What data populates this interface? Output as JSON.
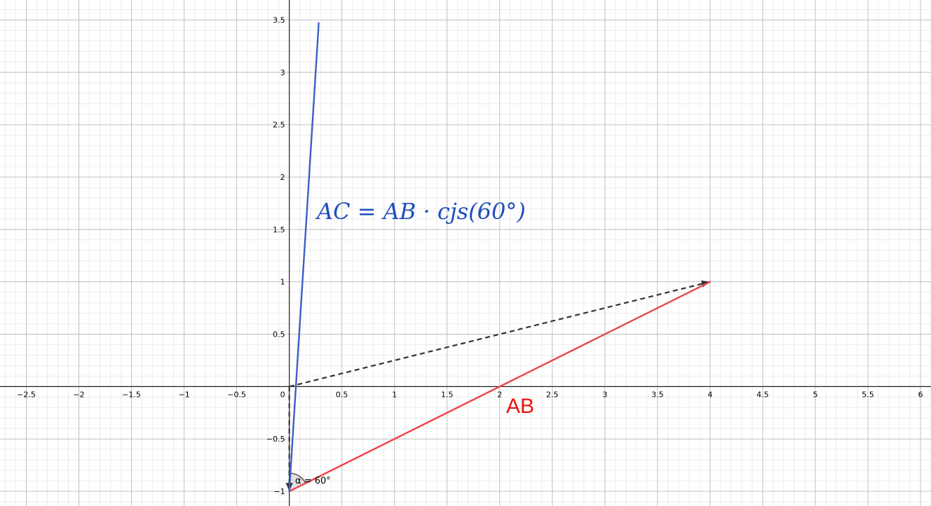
{
  "graph": {
    "x_range": [
      -2.75,
      6.1
    ],
    "y_range": [
      -1.14,
      3.69
    ],
    "major_step": 0.5,
    "minor_step": 0.1,
    "x_ticks": [
      {
        "v": -2.5,
        "t": "−2.5"
      },
      {
        "v": -2,
        "t": "−2"
      },
      {
        "v": -1.5,
        "t": "−1.5"
      },
      {
        "v": -1,
        "t": "−1"
      },
      {
        "v": -0.5,
        "t": "−0.5"
      },
      {
        "v": 0.5,
        "t": "0.5"
      },
      {
        "v": 1,
        "t": "1"
      },
      {
        "v": 1.5,
        "t": "1.5"
      },
      {
        "v": 2,
        "t": "2"
      },
      {
        "v": 2.5,
        "t": "2.5"
      },
      {
        "v": 3,
        "t": "3"
      },
      {
        "v": 3.5,
        "t": "3.5"
      },
      {
        "v": 4,
        "t": "4"
      },
      {
        "v": 4.5,
        "t": "4.5"
      },
      {
        "v": 5,
        "t": "5"
      },
      {
        "v": 5.5,
        "t": "5.5"
      },
      {
        "v": 6,
        "t": "6"
      }
    ],
    "y_ticks": [
      {
        "v": -1,
        "t": "−1"
      },
      {
        "v": -0.5,
        "t": "−0.5"
      },
      {
        "v": 0.5,
        "t": "0.5"
      },
      {
        "v": 1,
        "t": "1"
      },
      {
        "v": 1.5,
        "t": "1.5"
      },
      {
        "v": 2,
        "t": "2"
      },
      {
        "v": 2.5,
        "t": "2.5"
      },
      {
        "v": 3,
        "t": "3"
      },
      {
        "v": 3.5,
        "t": "3.5"
      }
    ],
    "origin_label": "0"
  },
  "objects": {
    "point_A": [
      0,
      -1
    ],
    "point_B": [
      4,
      1
    ],
    "segment_AB": {
      "from": [
        0,
        -1
      ],
      "to": [
        4,
        1
      ],
      "color": "#ee4444"
    },
    "segment_AC": {
      "from": [
        0,
        -1
      ],
      "to": [
        0.28,
        3.47
      ],
      "color": "#3a5fc8"
    },
    "vector_dashed_1": {
      "from": [
        0,
        0
      ],
      "to": [
        4,
        1
      ],
      "color": "#333333"
    },
    "vector_dashed_2": {
      "from": [
        0,
        0
      ],
      "to": [
        0,
        -1
      ],
      "color": "#333333"
    },
    "angle": {
      "vertex": [
        0,
        -1
      ],
      "label": "α = 60°"
    }
  },
  "labels": {
    "ac_formula": "AC = AB · cjs(60°)",
    "ab_label": "AB"
  }
}
